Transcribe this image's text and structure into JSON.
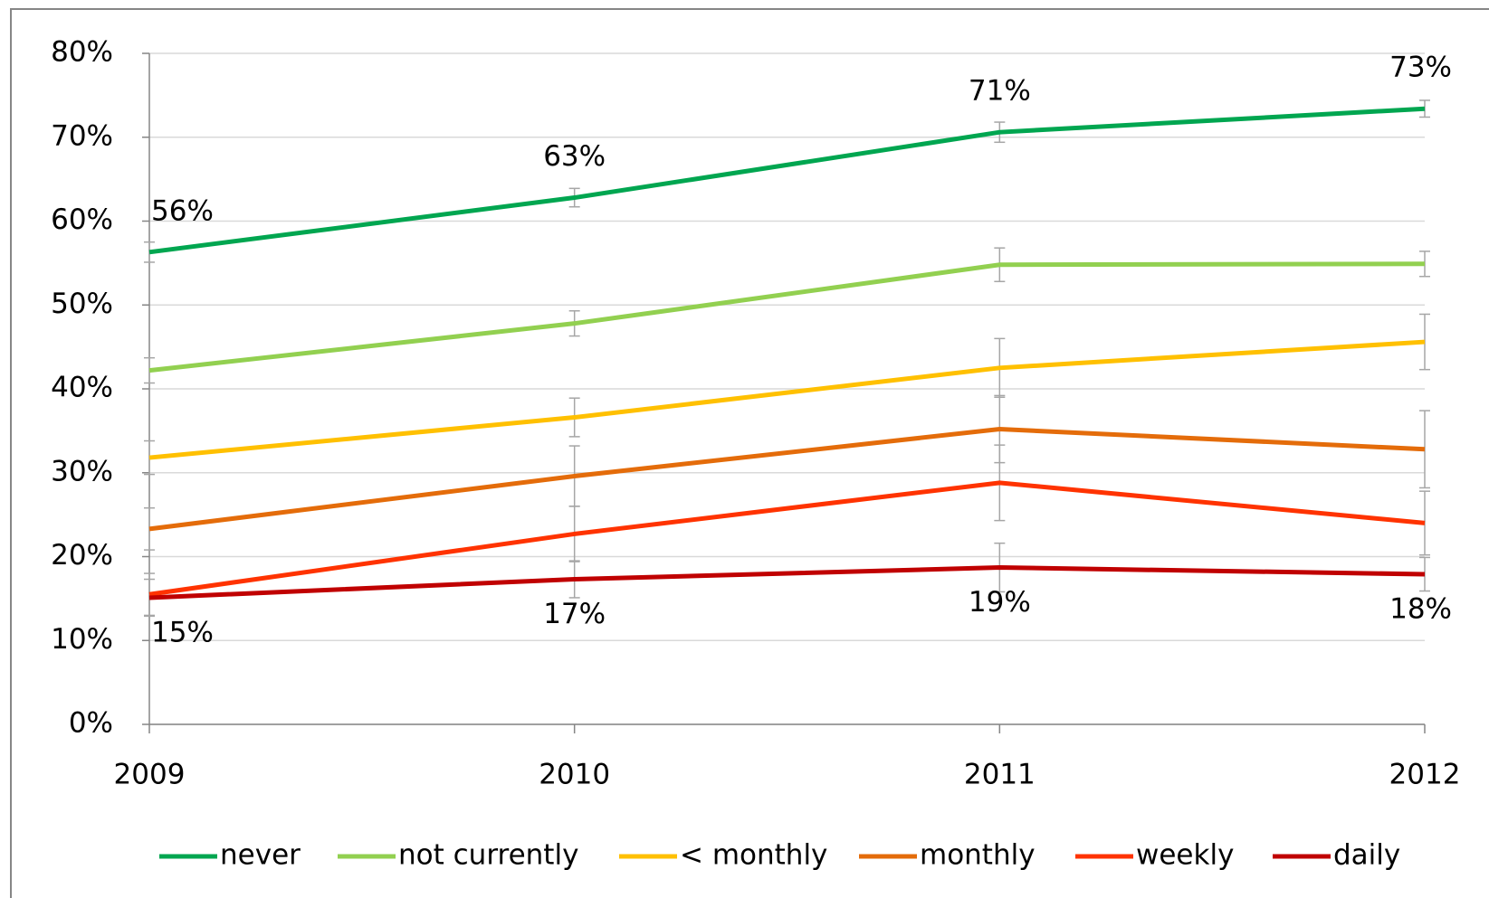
{
  "chart_data": {
    "type": "line",
    "categories": [
      "2009",
      "2010",
      "2011",
      "2012"
    ],
    "ylim": [
      0,
      80
    ],
    "yticks": [
      {
        "value": 0,
        "label": "0%"
      },
      {
        "value": 10,
        "label": "10%"
      },
      {
        "value": 20,
        "label": "20%"
      },
      {
        "value": 30,
        "label": "30%"
      },
      {
        "value": 40,
        "label": "40%"
      },
      {
        "value": 50,
        "label": "50%"
      },
      {
        "value": 60,
        "label": "60%"
      },
      {
        "value": 70,
        "label": "70%"
      },
      {
        "value": 80,
        "label": "80%"
      }
    ],
    "grid": true,
    "legend": "bottom",
    "series": [
      {
        "name": "never",
        "color": "#00a650",
        "values": [
          56.3,
          62.8,
          70.6,
          73.4
        ],
        "errors": [
          1.2,
          1.1,
          1.2,
          1.0
        ],
        "value_labels": [
          "56%",
          "63%",
          "71%",
          "73%"
        ]
      },
      {
        "name": "not currently",
        "color": "#92d050",
        "values": [
          42.2,
          47.8,
          54.8,
          54.9
        ],
        "errors": [
          1.5,
          1.5,
          2.0,
          1.5
        ]
      },
      {
        "name": "< monthly",
        "color": "#ffc000",
        "values": [
          31.8,
          36.6,
          42.5,
          45.6
        ],
        "errors": [
          2.0,
          2.3,
          3.5,
          3.3
        ]
      },
      {
        "name": "monthly",
        "color": "#e46c0a",
        "values": [
          23.3,
          29.6,
          35.2,
          32.8
        ],
        "errors": [
          2.5,
          3.6,
          4.0,
          4.6
        ]
      },
      {
        "name": "weekly",
        "color": "#ff3300",
        "values": [
          15.5,
          22.7,
          28.8,
          24.0
        ],
        "errors": [
          2.5,
          3.3,
          4.5,
          3.8
        ]
      },
      {
        "name": "daily",
        "color": "#c00000",
        "values": [
          15.1,
          17.3,
          18.7,
          17.9
        ],
        "errors": [
          2.2,
          2.2,
          2.9,
          2.0
        ],
        "value_labels": [
          "15%",
          "17%",
          "19%",
          "18%"
        ]
      }
    ]
  }
}
